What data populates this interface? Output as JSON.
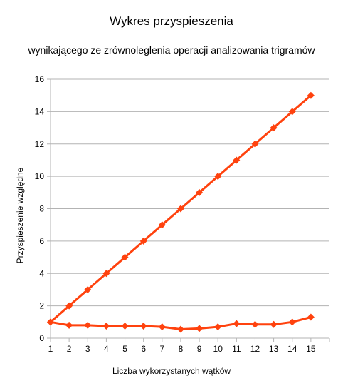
{
  "chart_data": {
    "type": "line",
    "title": "Wykres przyspieszenia",
    "subtitle": "wynikającego ze zrównoleglenia operacji analizowania trigramów",
    "xlabel": "Liczba wykorzystanych wątków",
    "ylabel": "Przyspieszenie względne",
    "x": [
      1,
      2,
      3,
      4,
      5,
      6,
      7,
      8,
      9,
      10,
      11,
      12,
      13,
      14,
      15
    ],
    "xlim": [
      1,
      16
    ],
    "ylim": [
      0,
      16
    ],
    "yticks": [
      0,
      2,
      4,
      6,
      8,
      10,
      12,
      14,
      16
    ],
    "grid": true,
    "legend": "none",
    "series": [
      {
        "color": "#ff420e",
        "marker": "diamond",
        "values": [
          1,
          2,
          3,
          4,
          5,
          6,
          7,
          8,
          9,
          10,
          11,
          12,
          13,
          14,
          15
        ]
      },
      {
        "color": "#ff420e",
        "marker": "diamond",
        "values": [
          1,
          0.8,
          0.8,
          0.75,
          0.75,
          0.75,
          0.7,
          0.55,
          0.6,
          0.7,
          0.9,
          0.85,
          0.85,
          1.0,
          1.3
        ]
      }
    ]
  }
}
